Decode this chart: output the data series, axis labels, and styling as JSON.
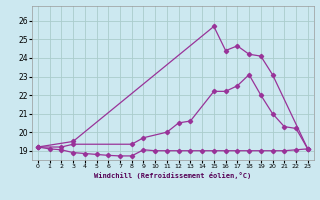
{
  "xlabel": "Windchill (Refroidissement éolien,°C)",
  "bg_color": "#cce8f0",
  "grid_color": "#aacccc",
  "line_color": "#993399",
  "xlim": [
    -0.5,
    23.5
  ],
  "ylim": [
    18.5,
    26.8
  ],
  "xticks": [
    0,
    1,
    2,
    3,
    4,
    5,
    6,
    7,
    8,
    9,
    10,
    11,
    12,
    13,
    14,
    15,
    16,
    17,
    18,
    19,
    20,
    21,
    22,
    23
  ],
  "yticks": [
    19,
    20,
    21,
    22,
    23,
    24,
    25,
    26
  ],
  "line1_x": [
    0,
    1,
    2,
    3,
    4,
    5,
    6,
    7,
    8,
    9,
    10,
    11,
    12,
    13,
    14,
    15,
    16,
    17,
    18,
    19,
    20,
    21,
    22,
    23
  ],
  "line1_y": [
    19.2,
    19.1,
    19.05,
    18.9,
    18.85,
    18.8,
    18.75,
    18.72,
    18.72,
    19.05,
    19.0,
    19.0,
    19.0,
    19.0,
    19.0,
    19.0,
    19.0,
    19.0,
    19.0,
    19.0,
    19.0,
    19.0,
    19.05,
    19.1
  ],
  "line2_x": [
    0,
    2,
    3,
    8,
    9,
    11,
    12,
    13,
    15,
    16,
    17,
    18,
    19,
    20,
    21,
    22,
    23
  ],
  "line2_y": [
    19.2,
    19.2,
    19.35,
    19.35,
    19.7,
    20.0,
    20.5,
    20.6,
    22.2,
    22.2,
    22.5,
    23.1,
    22.0,
    21.0,
    20.3,
    20.2,
    19.1
  ],
  "line3_x": [
    0,
    3,
    15,
    16,
    17,
    18,
    19,
    20,
    23
  ],
  "line3_y": [
    19.2,
    19.5,
    25.7,
    24.4,
    24.65,
    24.2,
    24.1,
    23.1,
    19.1
  ]
}
